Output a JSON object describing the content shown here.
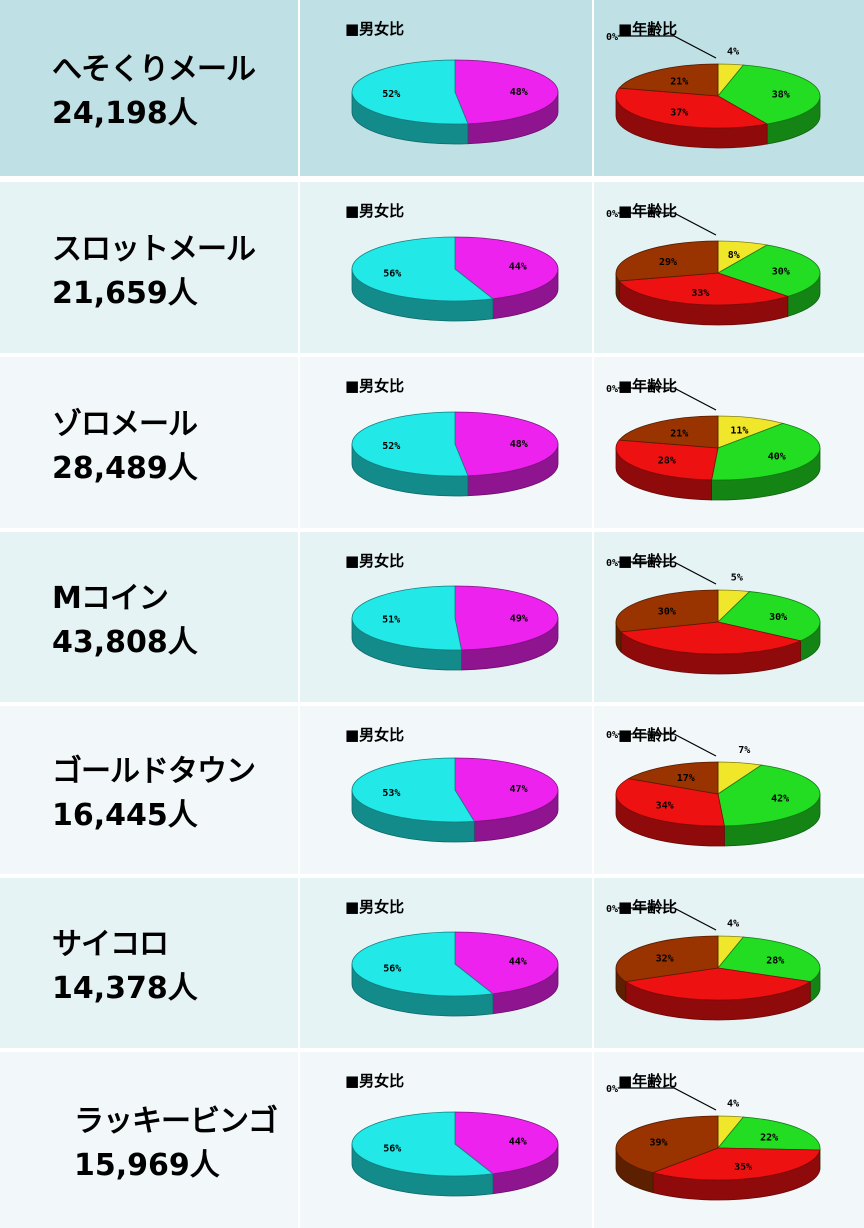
{
  "labels": {
    "gender_title": "■男女比",
    "age_title": "■年齢比"
  },
  "colors": {
    "header_bg": "#bfe0e4",
    "row_bg": "#e6f3f5",
    "row_bg_alt": "#f2f8fa",
    "male": "#ee22ee",
    "female": "#22e8e8",
    "age_yellow": "#f0e62a",
    "age_green": "#22dd22",
    "age_red": "#ee1111",
    "age_brown": "#993300"
  },
  "chart_data": [
    {
      "type": "pie",
      "service": "へそくりメール",
      "count": "24,198人",
      "gender": {
        "values": [
          48,
          52
        ],
        "labels": [
          "48%",
          "52%"
        ]
      },
      "age": {
        "values": [
          4,
          38,
          37,
          21
        ],
        "labels": [
          "4%",
          "38%",
          "37%",
          "21%"
        ],
        "extra_label": "0%"
      }
    },
    {
      "type": "pie",
      "service": "スロットメール",
      "count": "21,659人",
      "gender": {
        "values": [
          44,
          56
        ],
        "labels": [
          "44%",
          "56%"
        ]
      },
      "age": {
        "values": [
          8,
          30,
          33,
          29
        ],
        "labels": [
          "8%",
          "30%",
          "33%",
          "29%"
        ],
        "extra_label": "0%"
      }
    },
    {
      "type": "pie",
      "service": "ゾロメール",
      "count": "28,489人",
      "gender": {
        "values": [
          48,
          52
        ],
        "labels": [
          "48%",
          "52%"
        ]
      },
      "age": {
        "values": [
          11,
          40,
          28,
          21
        ],
        "labels": [
          "11%",
          "40%",
          "28%",
          "21%"
        ],
        "extra_label": "0%"
      }
    },
    {
      "type": "pie",
      "service": "Mコイン",
      "count": "43,808人",
      "gender": {
        "values": [
          49,
          51
        ],
        "labels": [
          "49%",
          "51%"
        ]
      },
      "age": {
        "values": [
          5,
          30,
          35,
          30
        ],
        "labels": [
          "5%",
          "30%",
          "",
          "30%"
        ],
        "extra_label": "0%"
      }
    },
    {
      "type": "pie",
      "service": "ゴールドタウン",
      "count": "16,445人",
      "gender": {
        "values": [
          47,
          53
        ],
        "labels": [
          "47%",
          "53%"
        ]
      },
      "age": {
        "values": [
          7,
          42,
          34,
          17
        ],
        "labels": [
          "7%",
          "42%",
          "34%",
          "17%"
        ],
        "extra_label": "0%"
      }
    },
    {
      "type": "pie",
      "service": "サイコロ",
      "count": "14,378人",
      "gender": {
        "values": [
          44,
          56
        ],
        "labels": [
          "44%",
          "56%"
        ]
      },
      "age": {
        "values": [
          4,
          28,
          36,
          32
        ],
        "labels": [
          "4%",
          "28%",
          "",
          "32%"
        ],
        "extra_label": "0%"
      }
    },
    {
      "type": "pie",
      "service": "ラッキービンゴ",
      "count": "15,969人",
      "gender": {
        "values": [
          44,
          56
        ],
        "labels": [
          "44%",
          "56%"
        ]
      },
      "age": {
        "values": [
          4,
          22,
          35,
          39
        ],
        "labels": [
          "4%",
          "22%",
          "35%",
          "39%"
        ],
        "extra_label": "0%"
      }
    }
  ]
}
